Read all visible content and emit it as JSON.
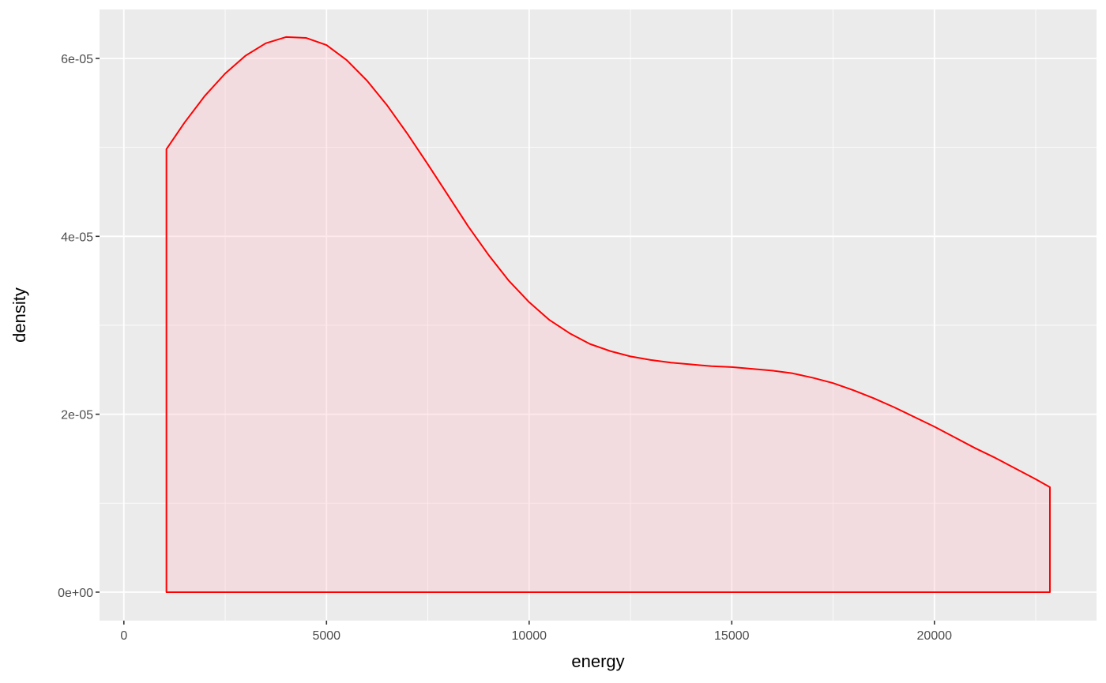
{
  "chart_data": {
    "type": "area",
    "title": "",
    "xlabel": "energy",
    "ylabel": "density",
    "xlim": [
      -600,
      24000
    ],
    "ylim": [
      -3.2e-06,
      6.55e-05
    ],
    "grid": true,
    "x_ticks": [
      0,
      5000,
      10000,
      15000,
      20000
    ],
    "x_tick_labels": [
      "0",
      "5000",
      "10000",
      "15000",
      "20000"
    ],
    "x_minor_ticks": [
      2500,
      7500,
      12500,
      17500,
      22500
    ],
    "y_ticks": [
      0,
      2e-05,
      4e-05,
      6e-05
    ],
    "y_tick_labels": [
      "0e+00",
      "2e-05",
      "4e-05",
      "6e-05"
    ],
    "y_minor_ticks": [
      1e-05,
      3e-05,
      5e-05
    ],
    "colors": {
      "panel": "#ebebeb",
      "grid": "#ffffff",
      "line": "#ff0000",
      "fill": "#ffc0cb",
      "tick_text": "#4d4d4d",
      "tick_mark": "#333333"
    },
    "series": [
      {
        "x": [
          1050,
          1500,
          2000,
          2500,
          3000,
          3500,
          4000,
          4500,
          5000,
          5500,
          6000,
          6500,
          7000,
          7500,
          8000,
          8500,
          9000,
          9500,
          10000,
          10500,
          11000,
          11500,
          12000,
          12500,
          13000,
          13500,
          14000,
          14500,
          15000,
          15500,
          16000,
          16500,
          17000,
          17500,
          18000,
          18500,
          19000,
          19500,
          20000,
          20500,
          21000,
          21500,
          22000,
          22500,
          22850
        ],
        "y": [
          4.98e-05,
          5.28e-05,
          5.58e-05,
          5.83e-05,
          6.03e-05,
          6.17e-05,
          6.24e-05,
          6.23e-05,
          6.15e-05,
          5.98e-05,
          5.75e-05,
          5.47e-05,
          5.15e-05,
          4.81e-05,
          4.46e-05,
          4.11e-05,
          3.79e-05,
          3.5e-05,
          3.26e-05,
          3.06e-05,
          2.91e-05,
          2.79e-05,
          2.71e-05,
          2.65e-05,
          2.61e-05,
          2.58e-05,
          2.56e-05,
          2.54e-05,
          2.53e-05,
          2.51e-05,
          2.49e-05,
          2.46e-05,
          2.41e-05,
          2.35e-05,
          2.27e-05,
          2.18e-05,
          2.08e-05,
          1.97e-05,
          1.86e-05,
          1.74e-05,
          1.62e-05,
          1.51e-05,
          1.39e-05,
          1.27e-05,
          1.18e-05
        ]
      }
    ]
  }
}
